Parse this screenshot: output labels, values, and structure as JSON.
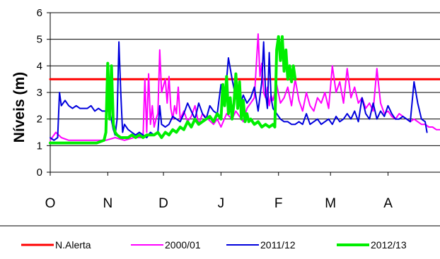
{
  "chart_data": {
    "type": "line",
    "title": "",
    "ylabel": "Níveis (m)",
    "xlabel": "",
    "ylim": [
      0,
      6
    ],
    "yticks": [
      "0",
      "1",
      "2",
      "3",
      "4",
      "5",
      "6"
    ],
    "x_unit": "days since start of October",
    "xlim": [
      0,
      210
    ],
    "months": [
      "O",
      "N",
      "D",
      "J",
      "F",
      "M",
      "A"
    ],
    "month_starts": [
      0,
      31,
      61,
      92,
      123,
      151,
      182
    ],
    "grid": "horizontal",
    "legend_position": "bottom",
    "series": [
      {
        "name": "N.Alerta",
        "color": "#ff0000",
        "width": 3,
        "x": [
          0,
          210
        ],
        "y": [
          3.5,
          3.5
        ]
      },
      {
        "name": "2000/01",
        "color": "#ff00ff",
        "width": 2,
        "x": [
          0,
          3,
          6,
          10,
          15,
          20,
          25,
          30,
          35,
          40,
          45,
          50,
          51,
          52,
          53,
          54,
          55,
          56,
          57,
          58,
          59,
          60,
          62,
          63,
          64,
          65,
          66,
          67,
          68,
          69,
          70,
          72,
          74,
          76,
          78,
          80,
          82,
          85,
          88,
          90,
          92,
          95,
          98,
          100,
          102,
          104,
          106,
          108,
          110,
          112,
          113,
          114,
          115,
          116,
          117,
          118,
          119,
          120,
          122,
          124,
          126,
          128,
          130,
          132,
          134,
          136,
          138,
          140,
          142,
          144,
          146,
          148,
          150,
          152,
          154,
          156,
          158,
          160,
          162,
          164,
          166,
          168,
          170,
          172,
          174,
          176,
          178,
          180,
          182,
          184,
          186,
          188,
          190,
          192,
          194,
          196,
          198,
          200,
          202,
          204,
          206,
          208,
          210
        ],
        "y": [
          1.2,
          1.5,
          1.3,
          1.2,
          1.2,
          1.2,
          1.2,
          1.2,
          1.3,
          1.2,
          1.3,
          1.3,
          3.5,
          1.5,
          3.7,
          1.8,
          2.5,
          1.7,
          2.0,
          2.2,
          4.6,
          3.0,
          3.5,
          2.6,
          3.6,
          2.4,
          2.0,
          2.5,
          2.2,
          3.2,
          2.0,
          2.3,
          1.9,
          2.1,
          2.5,
          1.8,
          2.2,
          2.0,
          1.8,
          2.0,
          1.7,
          2.2,
          2.0,
          2.3,
          2.1,
          1.9,
          2.4,
          2.6,
          2.8,
          5.2,
          3.6,
          4.1,
          3.0,
          2.8,
          3.2,
          2.5,
          2.9,
          2.7,
          3.3,
          2.6,
          2.8,
          3.2,
          2.5,
          3.5,
          2.7,
          2.3,
          3.0,
          2.5,
          2.3,
          2.8,
          2.6,
          3.0,
          2.4,
          4.0,
          3.0,
          3.4,
          2.6,
          3.9,
          2.8,
          3.2,
          2.6,
          2.8,
          2.4,
          2.6,
          2.3,
          3.9,
          2.6,
          2.2,
          2.3,
          2.1,
          2.0,
          2.2,
          2.1,
          2.0,
          1.9,
          2.0,
          1.9,
          1.8,
          1.8,
          1.7,
          1.7,
          1.6,
          1.6
        ]
      },
      {
        "name": "2011/12",
        "color": "#0000dd",
        "width": 2,
        "x": [
          0,
          2,
          4,
          5,
          6,
          8,
          10,
          12,
          14,
          16,
          18,
          20,
          22,
          24,
          26,
          28,
          30,
          32,
          34,
          35,
          36,
          37,
          38,
          39,
          40,
          42,
          44,
          46,
          48,
          50,
          52,
          54,
          56,
          58,
          59,
          60,
          62,
          64,
          66,
          68,
          70,
          72,
          74,
          76,
          78,
          80,
          82,
          84,
          86,
          88,
          90,
          92,
          94,
          96,
          98,
          100,
          102,
          104,
          106,
          108,
          110,
          112,
          114,
          115,
          116,
          117,
          118,
          119,
          120,
          122,
          124,
          126,
          128,
          130,
          132,
          134,
          136,
          138,
          140,
          142,
          144,
          146,
          148,
          150,
          152,
          154,
          156,
          158,
          160,
          162,
          164,
          166,
          168,
          170,
          172,
          174,
          176,
          178,
          180,
          182,
          184,
          186,
          188,
          190,
          192,
          194,
          196,
          198,
          200,
          202,
          203
        ],
        "y": [
          1.3,
          1.2,
          1.3,
          3.0,
          2.5,
          2.7,
          2.5,
          2.4,
          2.5,
          2.4,
          2.4,
          2.4,
          2.5,
          2.3,
          2.4,
          2.3,
          2.3,
          2.3,
          1.6,
          1.4,
          2.0,
          4.9,
          3.0,
          1.5,
          1.8,
          1.6,
          1.5,
          1.4,
          1.5,
          1.4,
          1.3,
          1.5,
          1.4,
          1.5,
          2.5,
          1.8,
          1.7,
          1.8,
          2.1,
          2.0,
          1.9,
          2.2,
          2.6,
          2.3,
          2.0,
          2.6,
          2.2,
          2.0,
          2.5,
          2.3,
          2.2,
          3.3,
          2.6,
          4.3,
          3.5,
          2.8,
          2.5,
          2.9,
          2.6,
          2.8,
          3.2,
          2.3,
          3.4,
          4.9,
          3.0,
          2.4,
          4.5,
          2.8,
          2.4,
          2.2,
          2.0,
          1.9,
          1.9,
          1.8,
          1.8,
          1.9,
          1.8,
          2.2,
          1.8,
          1.9,
          2.0,
          1.8,
          1.9,
          2.0,
          1.8,
          2.1,
          1.9,
          2.0,
          2.2,
          2.0,
          2.3,
          1.9,
          2.8,
          2.2,
          2.0,
          2.6,
          2.0,
          2.3,
          2.1,
          2.5,
          2.2,
          2.0,
          2.0,
          2.1,
          2.0,
          1.9,
          3.4,
          2.6,
          2.0,
          1.9,
          1.5
        ]
      },
      {
        "name": "2012/13",
        "color": "#00ee00",
        "width": 4,
        "x": [
          0,
          3,
          6,
          10,
          15,
          20,
          25,
          29,
          30,
          31,
          32,
          33,
          34,
          35,
          36,
          38,
          40,
          42,
          44,
          46,
          48,
          50,
          52,
          54,
          56,
          58,
          60,
          62,
          64,
          66,
          68,
          70,
          72,
          74,
          76,
          78,
          80,
          82,
          84,
          86,
          88,
          90,
          92,
          93,
          94,
          95,
          96,
          97,
          98,
          99,
          100,
          101,
          102,
          103,
          104,
          105,
          106,
          107,
          108,
          110,
          112,
          114,
          116,
          118,
          120,
          121,
          122,
          123,
          124,
          125,
          126,
          127,
          128,
          129,
          130,
          131,
          132
        ],
        "y": [
          1.1,
          1.1,
          1.1,
          1.1,
          1.1,
          1.1,
          1.1,
          1.2,
          1.5,
          4.1,
          2.0,
          4.0,
          1.8,
          1.5,
          1.4,
          1.3,
          1.3,
          1.3,
          1.4,
          1.3,
          1.4,
          1.3,
          1.4,
          1.4,
          1.4,
          1.5,
          1.3,
          1.5,
          1.4,
          1.6,
          1.5,
          1.7,
          1.6,
          1.9,
          1.7,
          2.0,
          1.8,
          1.9,
          2.0,
          2.1,
          1.9,
          2.2,
          2.0,
          3.3,
          2.5,
          3.6,
          2.2,
          2.8,
          2.0,
          2.6,
          3.7,
          2.4,
          3.4,
          2.0,
          2.7,
          1.9,
          2.2,
          1.9,
          2.0,
          1.8,
          1.9,
          1.7,
          1.8,
          1.7,
          1.8,
          1.7,
          4.6,
          5.1,
          4.2,
          5.1,
          3.8,
          4.6,
          3.5,
          4.0,
          3.4,
          4.0,
          3.5
        ]
      }
    ]
  }
}
